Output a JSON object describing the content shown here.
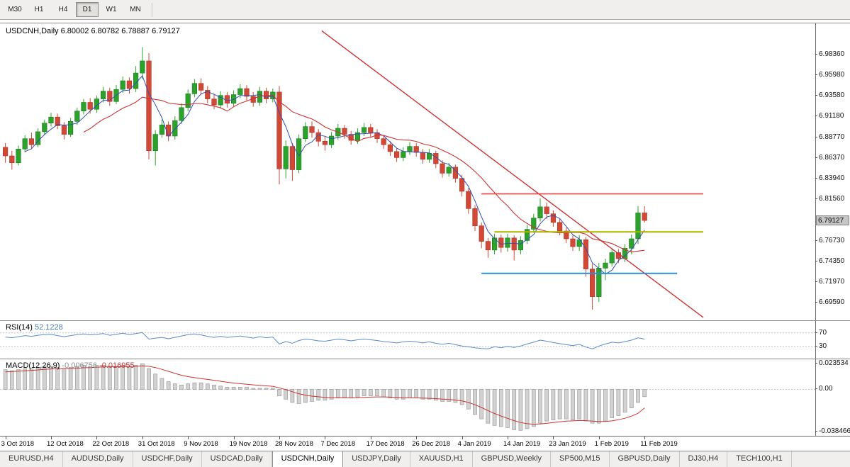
{
  "toolbar": {
    "timeframes": [
      "M30",
      "H1",
      "H4",
      "D1",
      "W1",
      "MN"
    ],
    "active": "D1"
  },
  "chart_data": {
    "type": "candlestick",
    "symbol": "USDCNH,Daily",
    "main": {
      "ohlc_text": "6.80002 6.80782 6.78887 6.79127",
      "current_price": "6.79127",
      "ylim": [
        6.6756,
        7.0195
      ],
      "price_ticks": [
        "6.98360",
        "6.95980",
        "6.93580",
        "6.91180",
        "6.88770",
        "6.86370",
        "6.83940",
        "6.81560",
        "6.76730",
        "6.74350",
        "6.71970",
        "6.69590"
      ],
      "up_color": "#2ca22c",
      "up_stroke": "#1d7a1d",
      "down_color": "#d14836",
      "down_stroke": "#a8372a",
      "ma_fast": {
        "period": 4,
        "color": "#3450b4"
      },
      "ma_slow": {
        "period": 13,
        "color": "#cc3333"
      },
      "trendline": {
        "from_index": 48.5,
        "from_price": 7.011,
        "to_index": 107,
        "to_price": 6.679,
        "color": "#cc3333"
      },
      "hlines": [
        {
          "price": 6.822,
          "from_index": 73,
          "to_index": 107,
          "color": "#ff4040",
          "width": 1.6
        },
        {
          "price": 6.778,
          "from_index": 75,
          "to_index": 107,
          "color": "#b0b000",
          "width": 2
        },
        {
          "price": 6.73,
          "from_index": 73,
          "to_index": 103,
          "color": "#2f8fd0",
          "width": 2
        }
      ],
      "candles": [
        [
          6.876,
          6.881,
          6.858,
          6.866
        ],
        [
          6.866,
          6.872,
          6.85,
          6.858
        ],
        [
          6.858,
          6.878,
          6.855,
          6.874
        ],
        [
          6.874,
          6.89,
          6.87,
          6.886
        ],
        [
          6.886,
          6.893,
          6.875,
          6.879
        ],
        [
          6.879,
          6.898,
          6.876,
          6.894
        ],
        [
          6.894,
          6.908,
          6.89,
          6.904
        ],
        [
          6.904,
          6.916,
          6.9,
          6.911
        ],
        [
          6.911,
          6.915,
          6.897,
          6.901
        ],
        [
          6.901,
          6.905,
          6.885,
          6.891
        ],
        [
          6.891,
          6.91,
          6.888,
          6.906
        ],
        [
          6.906,
          6.922,
          6.902,
          6.918
        ],
        [
          6.918,
          6.932,
          6.914,
          6.928
        ],
        [
          6.928,
          6.933,
          6.915,
          6.92
        ],
        [
          6.92,
          6.936,
          6.916,
          6.932
        ],
        [
          6.932,
          6.946,
          6.928,
          6.941
        ],
        [
          6.941,
          6.945,
          6.924,
          6.929
        ],
        [
          6.929,
          6.948,
          6.926,
          6.943
        ],
        [
          6.943,
          6.958,
          6.939,
          6.953
        ],
        [
          6.953,
          6.957,
          6.938,
          6.944
        ],
        [
          6.944,
          6.97,
          6.94,
          6.962
        ],
        [
          6.962,
          6.992,
          6.955,
          6.976
        ],
        [
          6.976,
          6.985,
          6.862,
          6.872
        ],
        [
          6.872,
          6.896,
          6.855,
          6.891
        ],
        [
          6.891,
          6.908,
          6.887,
          6.902
        ],
        [
          6.902,
          6.906,
          6.883,
          6.889
        ],
        [
          6.889,
          6.912,
          6.885,
          6.907
        ],
        [
          6.907,
          6.927,
          6.903,
          6.922
        ],
        [
          6.922,
          6.943,
          6.918,
          6.938
        ],
        [
          6.938,
          6.955,
          6.934,
          6.95
        ],
        [
          6.95,
          6.956,
          6.937,
          6.942
        ],
        [
          6.942,
          6.947,
          6.927,
          6.932
        ],
        [
          6.932,
          6.938,
          6.92,
          6.925
        ],
        [
          6.925,
          6.941,
          6.921,
          6.936
        ],
        [
          6.936,
          6.94,
          6.922,
          6.927
        ],
        [
          6.927,
          6.942,
          6.923,
          6.937
        ],
        [
          6.937,
          6.949,
          6.933,
          6.944
        ],
        [
          6.944,
          6.948,
          6.93,
          6.935
        ],
        [
          6.935,
          6.94,
          6.923,
          6.928
        ],
        [
          6.928,
          6.946,
          6.924,
          6.941
        ],
        [
          6.941,
          6.945,
          6.927,
          6.932
        ],
        [
          6.932,
          6.944,
          6.928,
          6.94
        ],
        [
          6.94,
          6.947,
          6.833,
          6.851
        ],
        [
          6.851,
          6.884,
          6.84,
          6.877
        ],
        [
          6.877,
          6.881,
          6.837,
          6.85
        ],
        [
          6.85,
          6.891,
          6.846,
          6.886
        ],
        [
          6.886,
          6.905,
          6.882,
          6.9
        ],
        [
          6.9,
          6.906,
          6.887,
          6.893
        ],
        [
          6.893,
          6.897,
          6.877,
          6.883
        ],
        [
          6.883,
          6.889,
          6.872,
          6.879
        ],
        [
          6.879,
          6.894,
          6.875,
          6.889
        ],
        [
          6.889,
          6.903,
          6.885,
          6.898
        ],
        [
          6.898,
          6.902,
          6.886,
          6.891
        ],
        [
          6.891,
          6.895,
          6.879,
          6.884
        ],
        [
          6.884,
          6.898,
          6.88,
          6.893
        ],
        [
          6.893,
          6.904,
          6.889,
          6.899
        ],
        [
          6.899,
          6.903,
          6.888,
          6.893
        ],
        [
          6.893,
          6.897,
          6.881,
          6.886
        ],
        [
          6.886,
          6.89,
          6.874,
          6.879
        ],
        [
          6.879,
          6.883,
          6.866,
          6.871
        ],
        [
          6.871,
          6.875,
          6.859,
          6.864
        ],
        [
          6.864,
          6.876,
          6.86,
          6.871
        ],
        [
          6.871,
          6.882,
          6.867,
          6.877
        ],
        [
          6.877,
          6.881,
          6.865,
          6.87
        ],
        [
          6.87,
          6.874,
          6.857,
          6.862
        ],
        [
          6.862,
          6.874,
          6.858,
          6.869
        ],
        [
          6.869,
          6.872,
          6.852,
          6.857
        ],
        [
          6.857,
          6.861,
          6.841,
          6.846
        ],
        [
          6.846,
          6.858,
          6.842,
          6.853
        ],
        [
          6.853,
          6.856,
          6.835,
          6.84
        ],
        [
          6.84,
          6.844,
          6.819,
          6.825
        ],
        [
          6.825,
          6.829,
          6.799,
          6.805
        ],
        [
          6.805,
          6.809,
          6.779,
          6.785
        ],
        [
          6.785,
          6.789,
          6.759,
          6.767
        ],
        [
          6.767,
          6.771,
          6.748,
          6.757
        ],
        [
          6.757,
          6.776,
          6.752,
          6.771
        ],
        [
          6.771,
          6.775,
          6.754,
          6.76
        ],
        [
          6.76,
          6.776,
          6.755,
          6.771
        ],
        [
          6.771,
          6.774,
          6.745,
          6.757
        ],
        [
          6.757,
          6.773,
          6.752,
          6.768
        ],
        [
          6.768,
          6.786,
          6.764,
          6.781
        ],
        [
          6.781,
          6.799,
          6.777,
          6.794
        ],
        [
          6.794,
          6.817,
          6.79,
          6.807
        ],
        [
          6.807,
          6.812,
          6.793,
          6.799
        ],
        [
          6.799,
          6.803,
          6.784,
          6.789
        ],
        [
          6.789,
          6.793,
          6.774,
          6.779
        ],
        [
          6.779,
          6.783,
          6.765,
          6.77
        ],
        [
          6.77,
          6.774,
          6.756,
          6.761
        ],
        [
          6.761,
          6.774,
          6.756,
          6.769
        ],
        [
          6.769,
          6.772,
          6.726,
          6.735
        ],
        [
          6.735,
          6.741,
          6.688,
          6.703
        ],
        [
          6.703,
          6.742,
          6.697,
          6.736
        ],
        [
          6.736,
          6.747,
          6.722,
          6.742
        ],
        [
          6.742,
          6.759,
          6.738,
          6.754
        ],
        [
          6.754,
          6.758,
          6.742,
          6.747
        ],
        [
          6.747,
          6.764,
          6.743,
          6.759
        ],
        [
          6.759,
          6.775,
          6.752,
          6.77
        ],
        [
          6.77,
          6.808,
          6.764,
          6.8
        ],
        [
          6.80002,
          6.80782,
          6.78887,
          6.79127
        ]
      ]
    },
    "rsi": {
      "label": "RSI(14)",
      "value_text": "52.1228",
      "color": "#5b8cc8",
      "levels": [
        70,
        30
      ],
      "ylim": [
        0,
        100
      ],
      "values": [
        58,
        56,
        59,
        62,
        60,
        63,
        65,
        66,
        62,
        59,
        62,
        65,
        67,
        64,
        66,
        68,
        63,
        66,
        69,
        65,
        68,
        71,
        52,
        55,
        57,
        53,
        57,
        61,
        65,
        67,
        64,
        60,
        57,
        60,
        57,
        59,
        61,
        58,
        55,
        59,
        56,
        58,
        38,
        45,
        40,
        48,
        52,
        50,
        47,
        46,
        49,
        52,
        50,
        47,
        50,
        52,
        50,
        48,
        45,
        43,
        41,
        44,
        46,
        44,
        41,
        44,
        40,
        37,
        40,
        36,
        32,
        30,
        27,
        25,
        24,
        30,
        27,
        31,
        28,
        32,
        38,
        43,
        49,
        46,
        42,
        39,
        36,
        33,
        37,
        29,
        24,
        32,
        38,
        43,
        41,
        45,
        49,
        56,
        52.12
      ]
    },
    "macd": {
      "label": "MACD(12,26,9)",
      "value1_text": "-0.006756",
      "value2_text": "-0.016955",
      "ylim": [
        -0.0425,
        0.0275
      ],
      "ticks": [
        "0.023534",
        "0.00",
        "-0.038466"
      ],
      "hist_fill": "#d2d2d2",
      "hist_stroke": "#9a9a9a",
      "signal_color": "#cc3333",
      "hist": [
        0.018,
        0.017,
        0.018,
        0.019,
        0.019,
        0.02,
        0.021,
        0.021,
        0.02,
        0.019,
        0.02,
        0.021,
        0.022,
        0.021,
        0.022,
        0.022,
        0.021,
        0.021,
        0.022,
        0.021,
        0.022,
        0.0235,
        0.019,
        0.014,
        0.01,
        0.007,
        0.005,
        0.004,
        0.005,
        0.006,
        0.006,
        0.005,
        0.004,
        0.003,
        0.002,
        0.002,
        0.002,
        0.002,
        0.001,
        0.001,
        0.001,
        0.001,
        -0.006,
        -0.009,
        -0.012,
        -0.013,
        -0.012,
        -0.011,
        -0.01,
        -0.01,
        -0.009,
        -0.008,
        -0.008,
        -0.008,
        -0.007,
        -0.006,
        -0.006,
        -0.006,
        -0.007,
        -0.008,
        -0.009,
        -0.009,
        -0.008,
        -0.008,
        -0.009,
        -0.009,
        -0.01,
        -0.011,
        -0.011,
        -0.012,
        -0.014,
        -0.018,
        -0.023,
        -0.027,
        -0.031,
        -0.033,
        -0.034,
        -0.035,
        -0.037,
        -0.0375,
        -0.036,
        -0.034,
        -0.031,
        -0.029,
        -0.028,
        -0.027,
        -0.027,
        -0.028,
        -0.027,
        -0.029,
        -0.031,
        -0.031,
        -0.029,
        -0.026,
        -0.024,
        -0.021,
        -0.017,
        -0.012,
        -0.006756
      ],
      "signal": [
        0.016,
        0.0163,
        0.0166,
        0.017,
        0.0174,
        0.0178,
        0.0183,
        0.0187,
        0.0189,
        0.0189,
        0.019,
        0.0193,
        0.0197,
        0.0199,
        0.0202,
        0.0205,
        0.0206,
        0.0207,
        0.0209,
        0.0209,
        0.0211,
        0.0215,
        0.0211,
        0.0199,
        0.0183,
        0.0165,
        0.0146,
        0.0129,
        0.0116,
        0.0107,
        0.0099,
        0.0091,
        0.0083,
        0.0074,
        0.0065,
        0.0058,
        0.0052,
        0.0047,
        0.0041,
        0.0036,
        0.0032,
        0.0028,
        0.0014,
        -0.0003,
        -0.0022,
        -0.004,
        -0.0053,
        -0.0062,
        -0.0068,
        -0.0073,
        -0.0076,
        -0.0077,
        -0.0077,
        -0.0078,
        -0.0076,
        -0.0073,
        -0.0071,
        -0.0069,
        -0.0069,
        -0.0071,
        -0.0074,
        -0.0077,
        -0.0078,
        -0.0078,
        -0.008,
        -0.0082,
        -0.0085,
        -0.0089,
        -0.0093,
        -0.0098,
        -0.0106,
        -0.012,
        -0.0141,
        -0.0166,
        -0.0194,
        -0.0221,
        -0.0244,
        -0.0265,
        -0.0286,
        -0.0303,
        -0.0314,
        -0.0319,
        -0.0317,
        -0.0311,
        -0.0304,
        -0.0297,
        -0.0291,
        -0.0288,
        -0.0285,
        -0.0286,
        -0.029,
        -0.0294,
        -0.0294,
        -0.0288,
        -0.0278,
        -0.0264,
        -0.0245,
        -0.0219,
        -0.016955
      ]
    },
    "x_ticks": [
      {
        "i": 0,
        "label": "3 Oct 2018"
      },
      {
        "i": 7,
        "label": "12 Oct 2018"
      },
      {
        "i": 14,
        "label": "22 Oct 2018"
      },
      {
        "i": 21,
        "label": "31 Oct 2018"
      },
      {
        "i": 28,
        "label": "9 Nov 2018"
      },
      {
        "i": 35,
        "label": "19 Nov 2018"
      },
      {
        "i": 42,
        "label": "28 Nov 2018"
      },
      {
        "i": 49,
        "label": "7 Dec 2018"
      },
      {
        "i": 56,
        "label": "17 Dec 2018"
      },
      {
        "i": 63,
        "label": "26 Dec 2018"
      },
      {
        "i": 70,
        "label": "4 Jan 2019"
      },
      {
        "i": 77,
        "label": "14 Jan 2019"
      },
      {
        "i": 84,
        "label": "23 Jan 2019"
      },
      {
        "i": 91,
        "label": "1 Feb 2019"
      },
      {
        "i": 98,
        "label": "11 Feb 2019"
      }
    ]
  },
  "tabs": {
    "items": [
      "EURUSD,H4",
      "AUDUSD,Daily",
      "USDCHF,Daily",
      "USDCAD,Daily",
      "USDCNH,Daily",
      "USDJPY,Daily",
      "XAUUSD,H1",
      "GBPUSD,Weekly",
      "SP500,M15",
      "GBPUSD,Daily",
      "DJ30,H4",
      "TECH100,H1"
    ],
    "active": "USDCNH,Daily"
  }
}
